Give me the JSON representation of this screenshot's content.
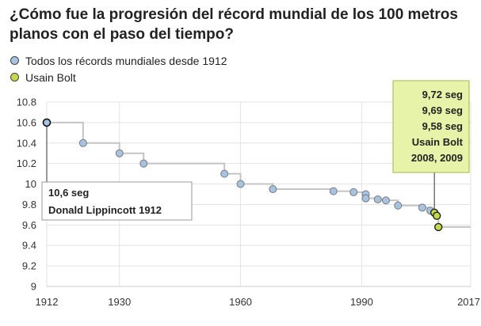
{
  "title": "¿Cómo fue la progresión del récord mundial de los 100 metros planos con el paso del tiempo?",
  "legend": {
    "items": [
      {
        "label": "Todos los récords mundiales desde 1912",
        "color": "#a6c4e2"
      },
      {
        "label": "Usain Bolt",
        "color": "#c5d84b"
      }
    ]
  },
  "annotations": {
    "lippincott": {
      "line1": "10,6 seg",
      "line2": "Donald Lippincott 1912"
    },
    "bolt": {
      "lines": [
        "9,72 seg",
        "9,69 seg",
        "9,58 seg",
        "Usain Bolt",
        "2008, 2009"
      ],
      "box_color": "#e6f3a8"
    }
  },
  "chart_data": {
    "type": "scatter",
    "xlim": [
      1912,
      2017
    ],
    "ylim": [
      9,
      10.8
    ],
    "xticks": [
      1912,
      1930,
      1960,
      1990,
      2017
    ],
    "yticks": [
      9,
      9.2,
      9.4,
      9.6,
      9.8,
      10,
      10.2,
      10.4,
      10.6,
      10.8
    ],
    "ytick_labels": [
      "9",
      "9.2",
      "9.4",
      "9.6",
      "9.8",
      "10",
      "10.2",
      "10.4",
      "10.6",
      "10.8"
    ],
    "grid": true,
    "step_line": true,
    "series": [
      {
        "name": "Todos los récords mundiales desde 1912",
        "color": "#a6c4e2",
        "x": [
          1912,
          1921,
          1930,
          1936,
          1956,
          1960,
          1968,
          1983,
          1988,
          1991,
          1991,
          1994,
          1996,
          1999,
          2005,
          2007
        ],
        "y": [
          10.6,
          10.4,
          10.3,
          10.2,
          10.1,
          10.0,
          9.95,
          9.93,
          9.92,
          9.9,
          9.86,
          9.85,
          9.84,
          9.79,
          9.77,
          9.74
        ]
      },
      {
        "name": "Usain Bolt",
        "color": "#c5d84b",
        "x": [
          2008,
          2008.6,
          2009
        ],
        "y": [
          9.72,
          9.69,
          9.58
        ]
      }
    ]
  }
}
